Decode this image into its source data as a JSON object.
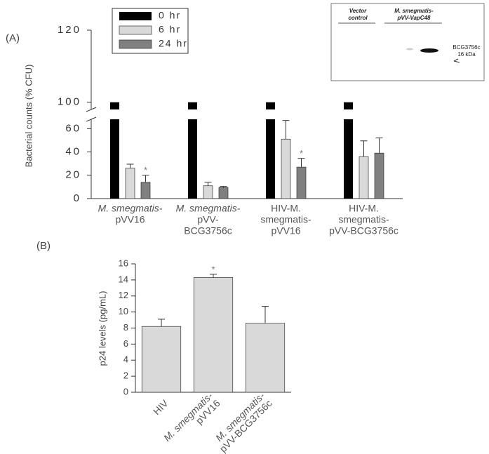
{
  "chart_data": [
    {
      "type": "bar",
      "panel_label": "(A)",
      "ylabel": "Bacterial counts (% CFU)",
      "categories": [
        [
          "M. smegmatis-",
          "pVV16"
        ],
        [
          "M. smegmatis-",
          "pVV-",
          "BCG3756c"
        ],
        [
          "HIV-M.",
          "smegmatis-",
          "pVV16"
        ],
        [
          "HIV-M.",
          "smegmatis-",
          "pVV-BCG3756c"
        ]
      ],
      "series": [
        {
          "name": "0 hr",
          "color": "#000000",
          "values": [
            100,
            100,
            100,
            100
          ]
        },
        {
          "name": "6 hr",
          "color": "#d9d9d9",
          "values": [
            26,
            11,
            51,
            36
          ],
          "errors": [
            3.5,
            3,
            16,
            13.5
          ]
        },
        {
          "name": "24 hr",
          "color": "#808080",
          "values": [
            14,
            9.5,
            27,
            39
          ],
          "errors": [
            6,
            1,
            7.5,
            13
          ],
          "significance": [
            "*",
            null,
            "*",
            null
          ]
        }
      ],
      "ylim": [
        0,
        120
      ],
      "yticks": [
        0,
        20,
        40,
        60,
        100,
        120
      ],
      "ybreak": [
        68,
        98
      ],
      "legend": "upper left",
      "inset": {
        "lane_labels": [
          [
            "Vector",
            "control"
          ],
          [
            "M. smegmatis-",
            "pVV-VapC48"
          ]
        ],
        "band_label": [
          "BCG3756c",
          "16 kDa"
        ]
      }
    },
    {
      "type": "bar",
      "panel_label": "(B)",
      "ylabel": "p24 levels (pg/mL)",
      "categories": [
        [
          "HIV"
        ],
        [
          "M. smegmatis-",
          "pVV16"
        ],
        [
          "M. smegmatis-",
          "pVV-BCG3756c"
        ]
      ],
      "values": [
        8.2,
        14.3,
        8.6
      ],
      "errors": [
        0.9,
        0.4,
        2.1
      ],
      "significance": [
        null,
        "*",
        null
      ],
      "color": "#d9d9d9",
      "ylim": [
        0,
        16
      ],
      "yticks": [
        0,
        2,
        4,
        6,
        8,
        10,
        12,
        14,
        16
      ]
    }
  ]
}
